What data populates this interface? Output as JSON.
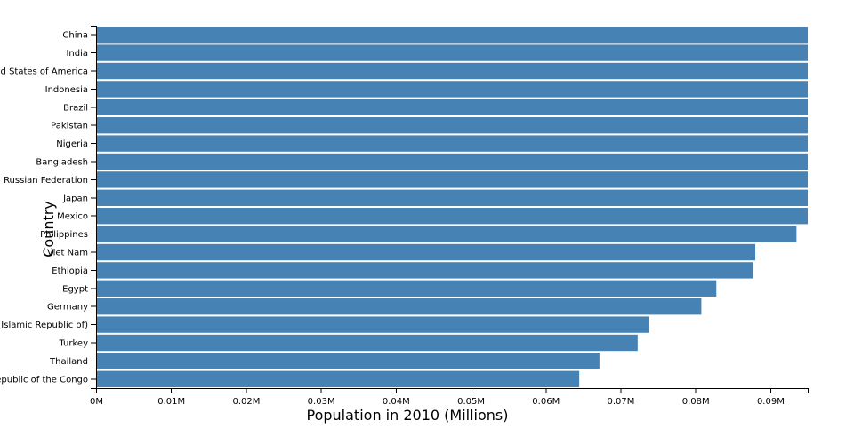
{
  "chart_data": {
    "type": "bar",
    "orientation": "horizontal",
    "xlabel": "Population in 2010 (Millions)",
    "ylabel": "Country",
    "xlim": [
      0,
      0.095
    ],
    "x_ticks": [
      {
        "value": 0,
        "label": "0M"
      },
      {
        "value": 0.01,
        "label": "0.01M"
      },
      {
        "value": 0.02,
        "label": "0.02M"
      },
      {
        "value": 0.03,
        "label": "0.03M"
      },
      {
        "value": 0.04,
        "label": "0.04M"
      },
      {
        "value": 0.05,
        "label": "0.05M"
      },
      {
        "value": 0.06,
        "label": "0.06M"
      },
      {
        "value": 0.07,
        "label": "0.07M"
      },
      {
        "value": 0.08,
        "label": "0.08M"
      },
      {
        "value": 0.09,
        "label": "0.09M"
      }
    ],
    "categories": [
      "China",
      "India",
      "United States of America",
      "Indonesia",
      "Brazil",
      "Pakistan",
      "Nigeria",
      "Bangladesh",
      "Russian Federation",
      "Japan",
      "Mexico",
      "Philippines",
      "Viet Nam",
      "Ethiopia",
      "Egypt",
      "Germany",
      "Iran (Islamic Republic of)",
      "Turkey",
      "Thailand",
      "Democratic Republic of the Congo"
    ],
    "values": [
      0.095,
      0.095,
      0.095,
      0.095,
      0.095,
      0.095,
      0.095,
      0.095,
      0.095,
      0.095,
      0.095,
      0.0935,
      0.088,
      0.0877,
      0.0828,
      0.0808,
      0.0738,
      0.0723,
      0.0672,
      0.0645
    ],
    "bar_color": "#4682b4",
    "grid": false,
    "legend": "none"
  }
}
